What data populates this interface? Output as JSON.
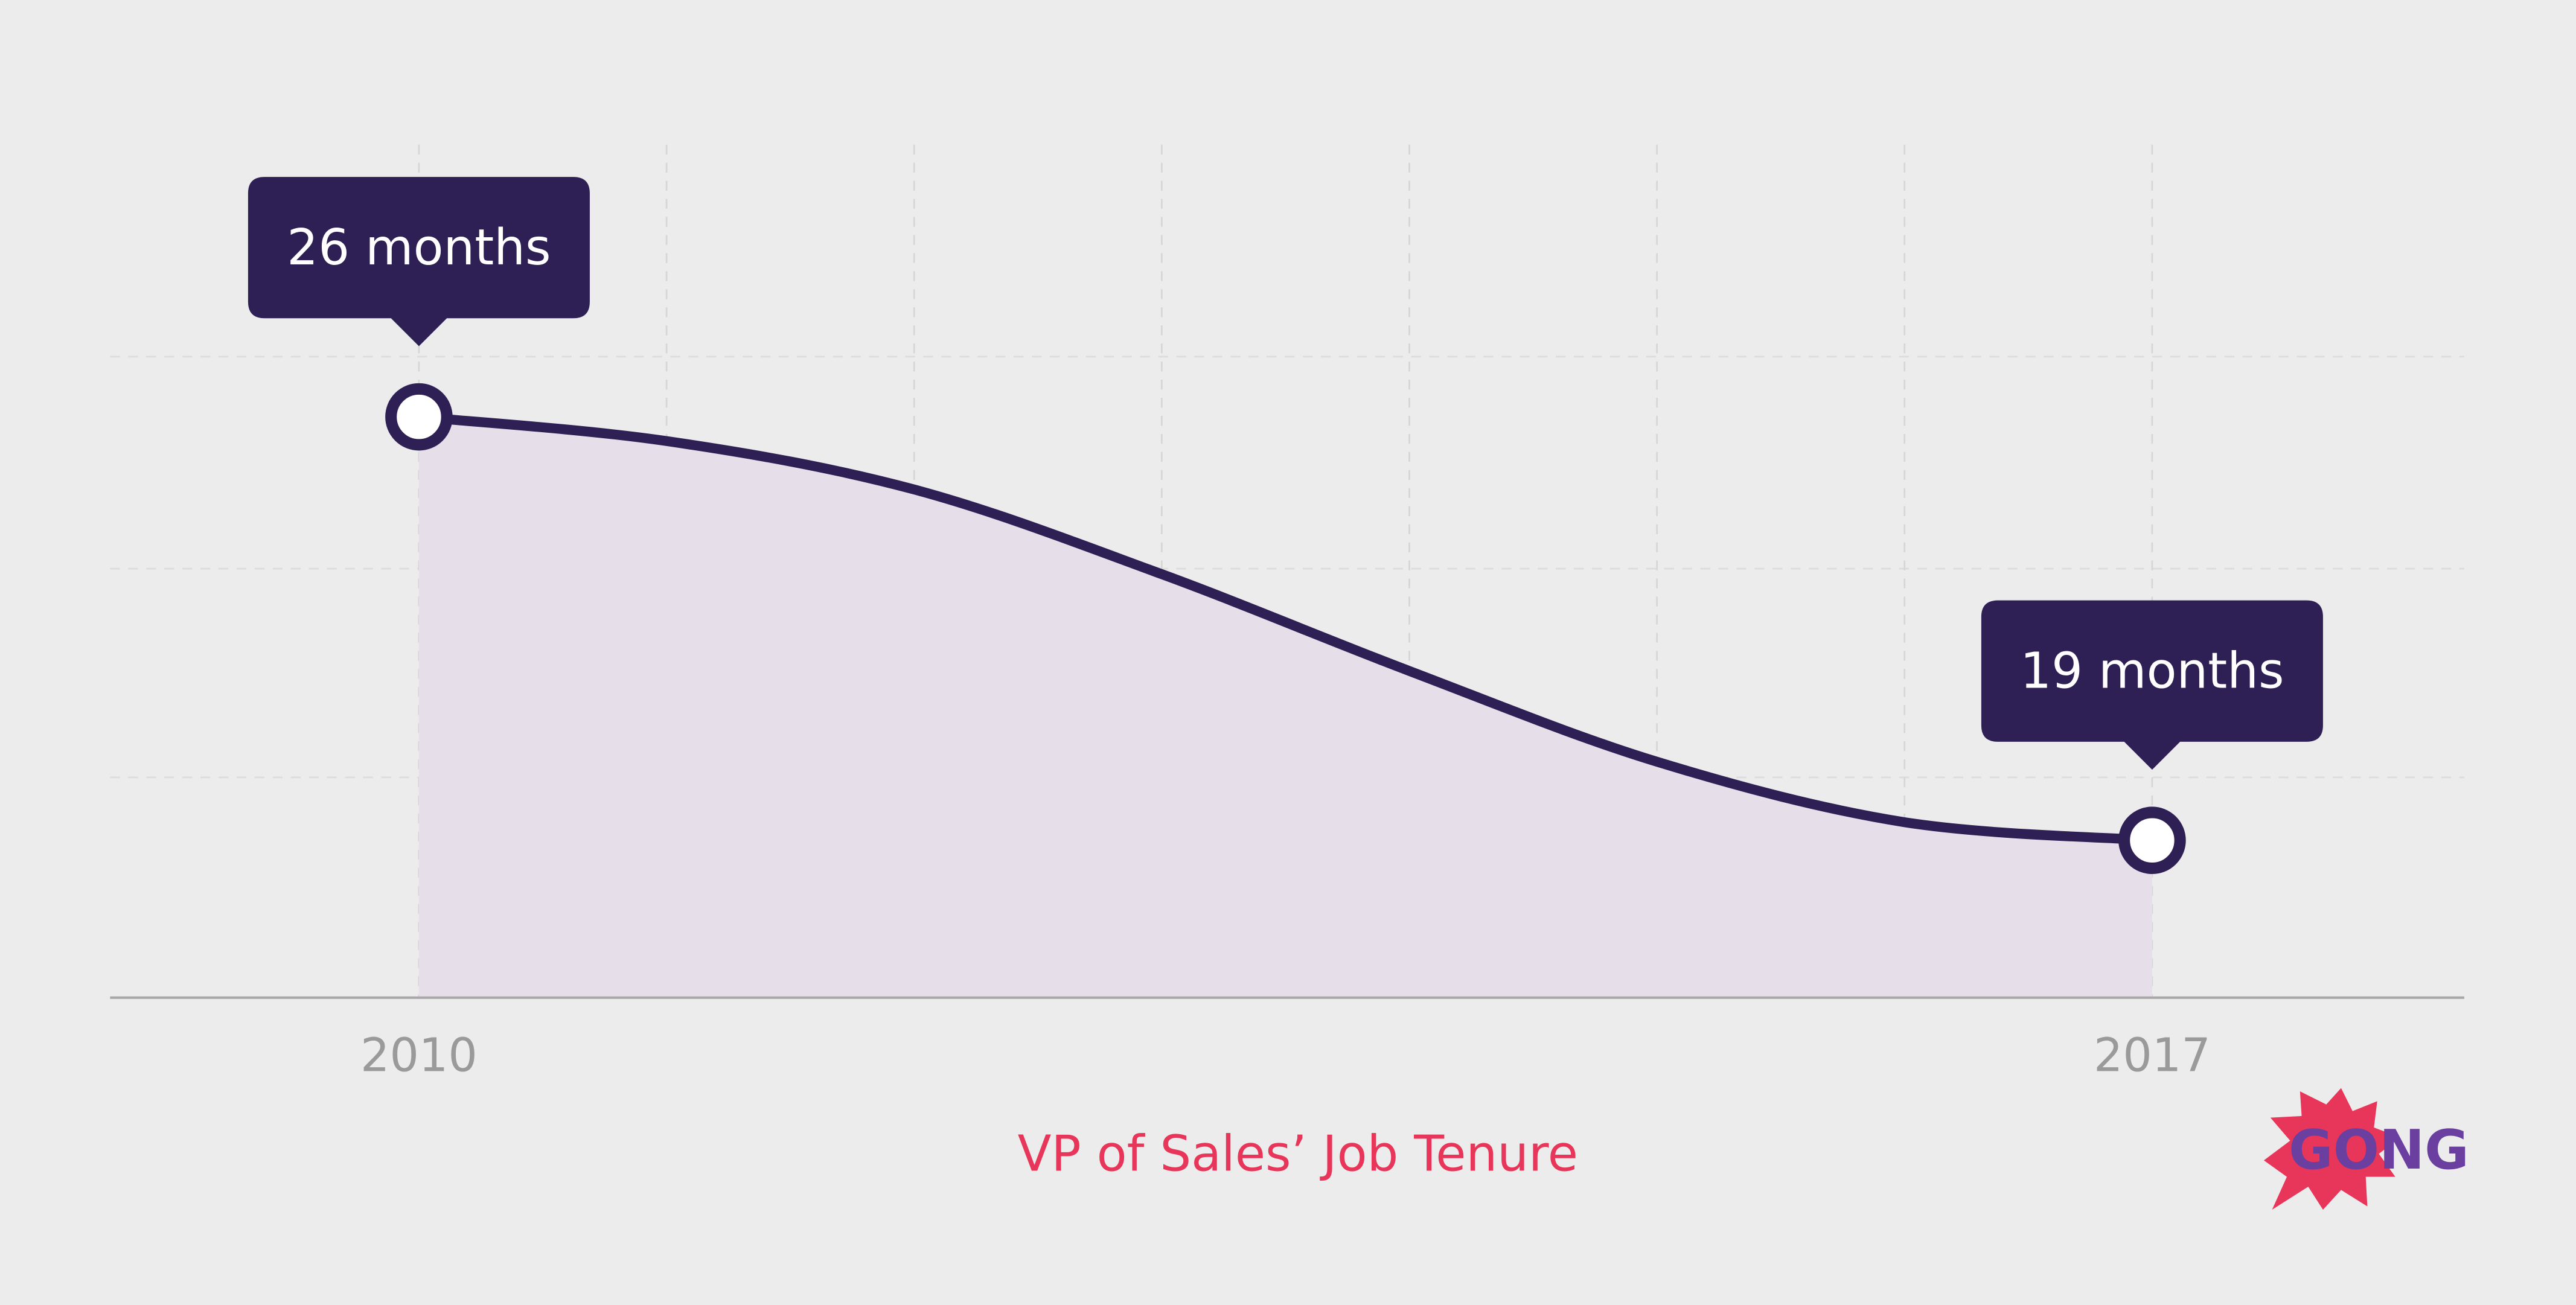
{
  "chart_data": {
    "type": "line",
    "title": "VP of Sales’ Job Tenure",
    "categories": [
      "2010",
      null,
      null,
      null,
      null,
      null,
      null,
      "2017"
    ],
    "series": [
      {
        "name": "VP of Sales job tenure",
        "color": "#2e1f54",
        "values": [
          26,
          25.6,
          24.8,
          23.4,
          21.8,
          20.3,
          19.3,
          19
        ],
        "value_labels": [
          "26 months",
          null,
          null,
          null,
          null,
          null,
          null,
          "19 months"
        ]
      }
    ],
    "ylim": [
      16.4,
      30.5
    ],
    "area_color": "#e6dfe9",
    "grid": true
  },
  "brand": "GONG"
}
